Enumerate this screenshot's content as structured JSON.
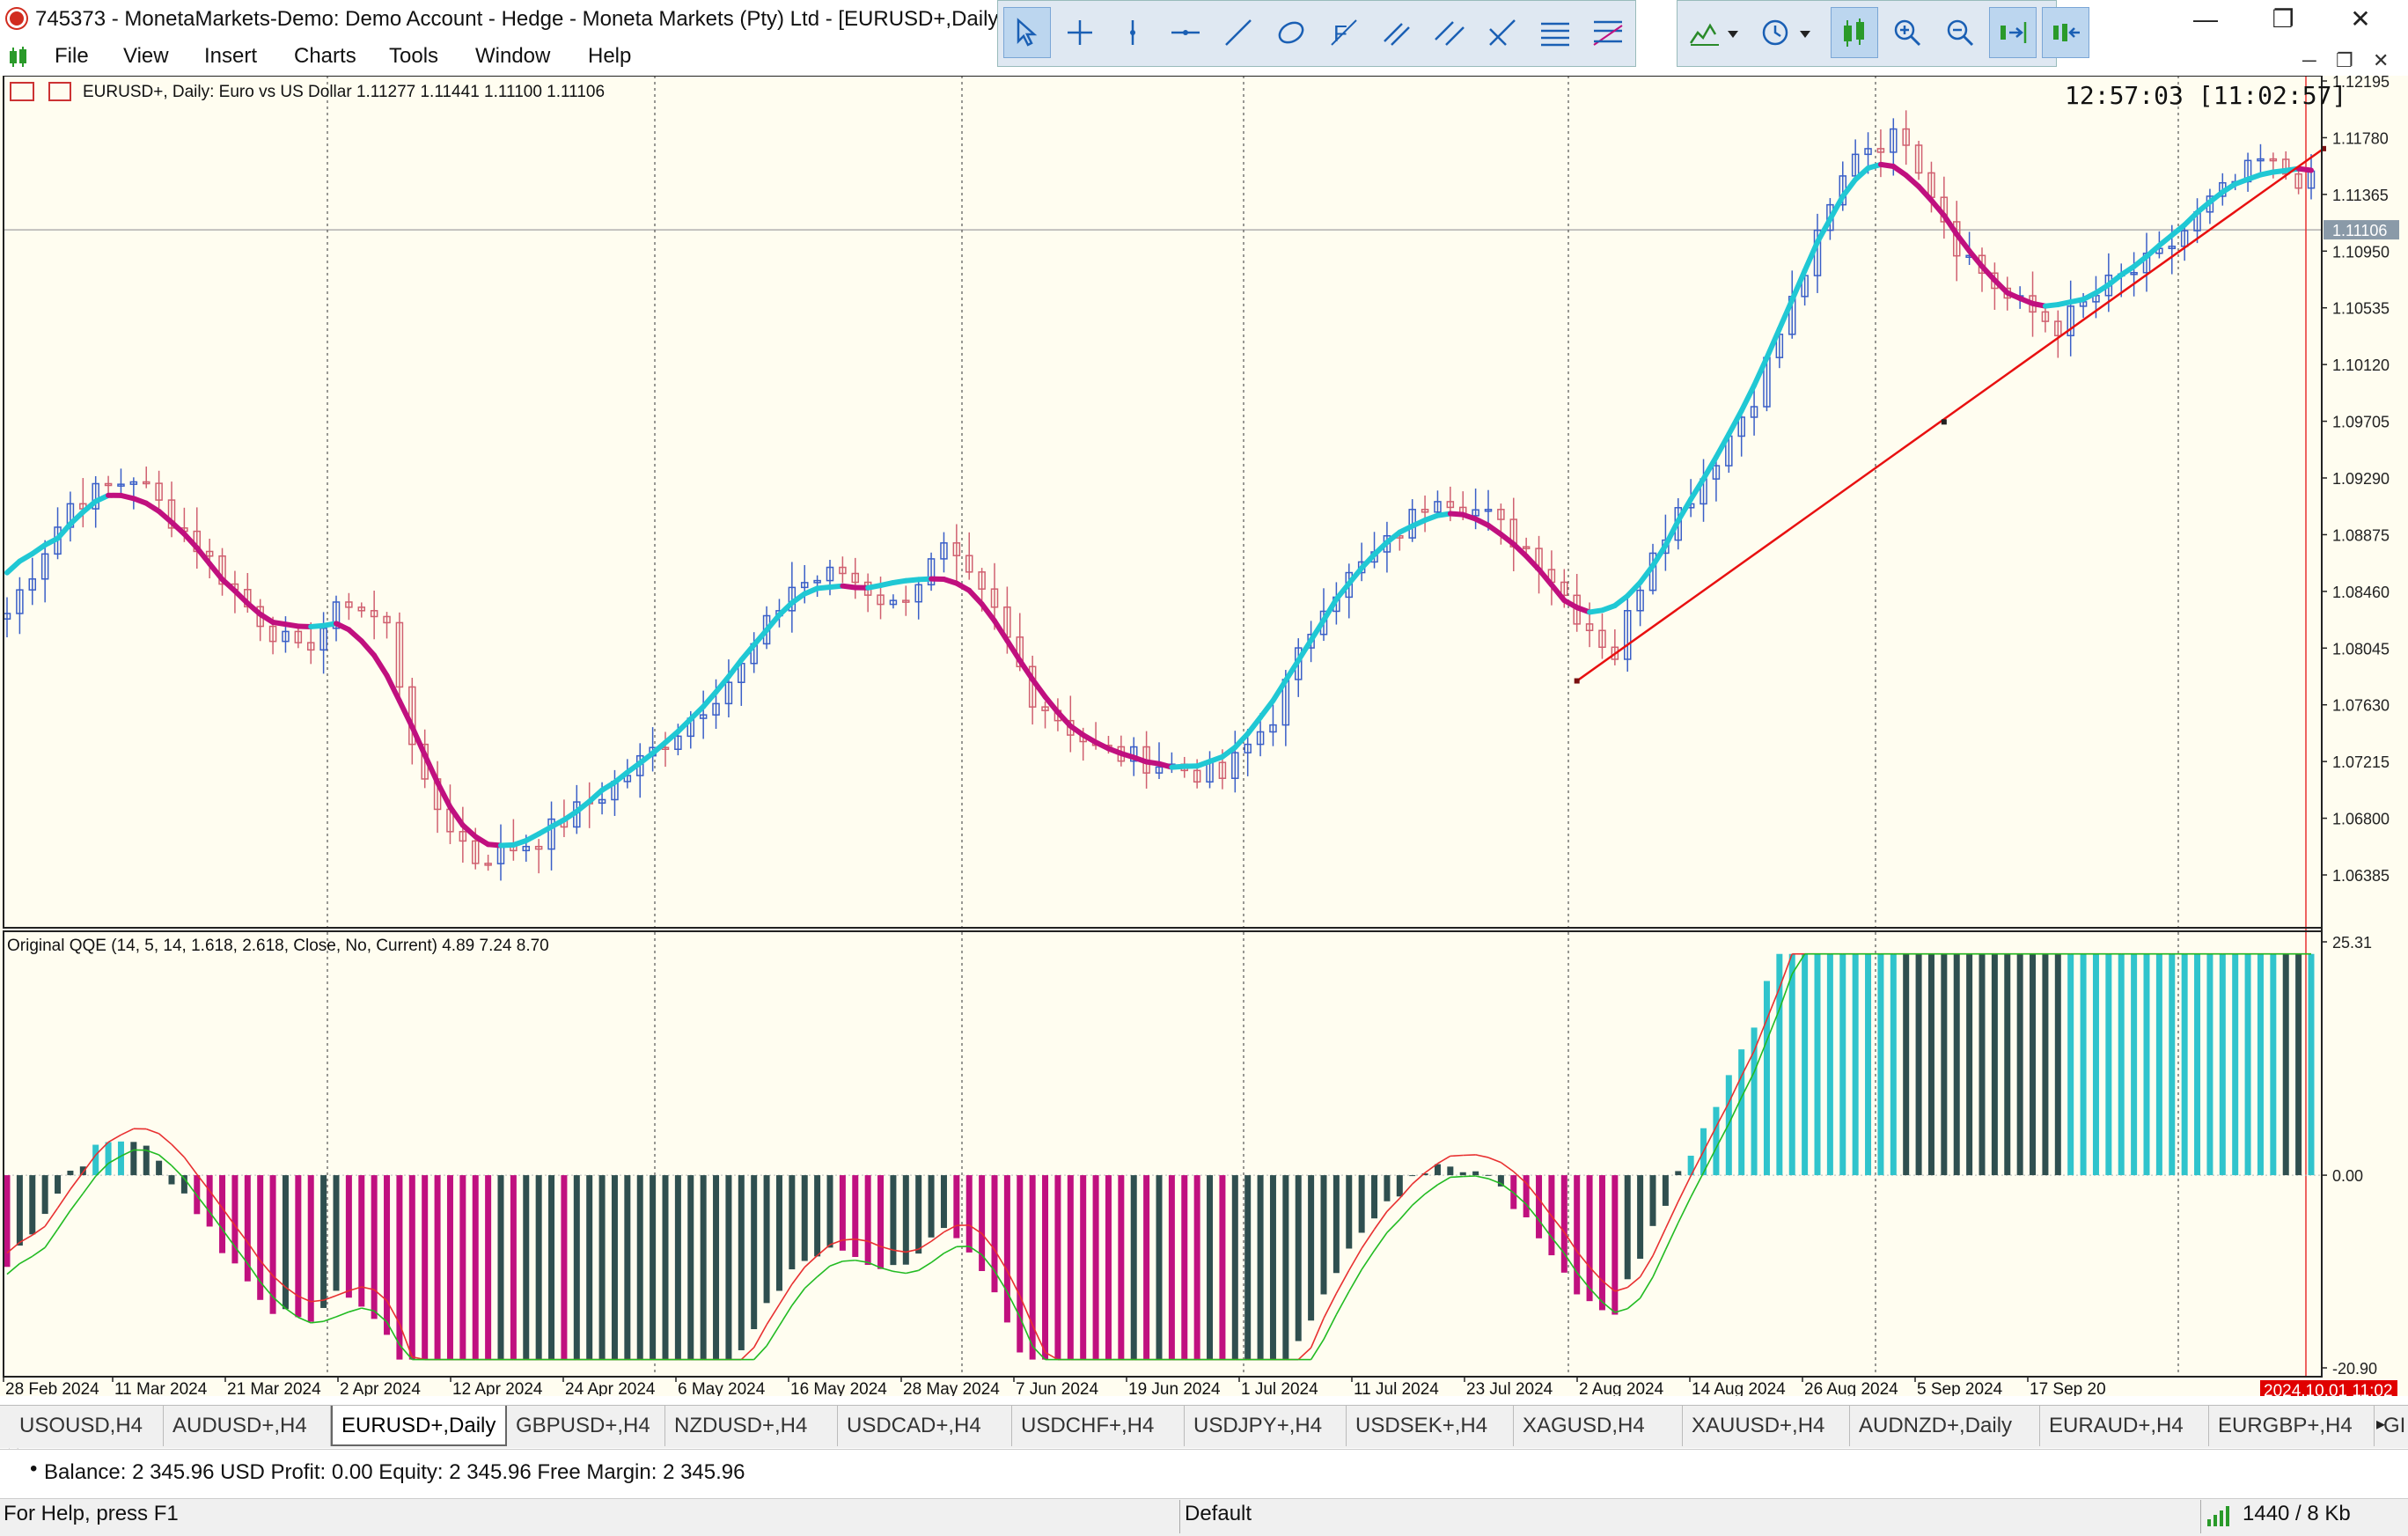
{
  "window": {
    "title": "745373 - MonetaMarkets-Demo: Demo Account - Hedge - Moneta Markets (Pty) Ltd - [EURUSD+,Daily]",
    "min": "—",
    "max": "❐",
    "close": "✕"
  },
  "menu": [
    "File",
    "View",
    "Insert",
    "Charts",
    "Tools",
    "Window",
    "Help"
  ],
  "toolbar_icons": [
    "cursor-icon",
    "crosshair-icon",
    "vertical-line-icon",
    "horizontal-line-icon",
    "trendline-icon",
    "ellipse-icon",
    "fibo-icon",
    "channel-icon",
    "parallel-icon",
    "pitchfork-icon",
    "levels-icon",
    "fan-icon",
    "indicators-icon",
    "timeframe-icon",
    "candles-icon",
    "zoom-in-icon",
    "zoom-out-icon",
    "autoscroll-icon",
    "chart-shift-icon"
  ],
  "chart": {
    "symbol_line": "EURUSD+, Daily:  Euro vs US Dollar  1.11277 1.11441 1.11100 1.11106",
    "clock": "12:57:03 [11:02:57]",
    "price_ticks": [
      "1.12195",
      "1.11780",
      "1.11365",
      "1.10950",
      "1.10535",
      "1.10120",
      "1.09705",
      "1.09290",
      "1.08875",
      "1.08460",
      "1.08045",
      "1.07630",
      "1.07215",
      "1.06800",
      "1.06385"
    ],
    "current_price": "1.11106",
    "indicator_label": "Original QQE (14, 5, 14, 1.618, 2.618, Close, No, Current) 4.89 7.24 8.70",
    "qqe_ticks": [
      "25.31",
      "0.00",
      "-20.90"
    ],
    "date_labels": [
      "28 Feb 2024",
      "11 Mar 2024",
      "21 Mar 2024",
      "2 Apr 2024",
      "12 Apr 2024",
      "24 Apr 2024",
      "6 May 2024",
      "16 May 2024",
      "28 May 2024",
      "7 Jun 2024",
      "19 Jun 2024",
      "1 Jul 2024",
      "11 Jul 2024",
      "23 Jul 2024",
      "2 Aug 2024",
      "14 Aug 2024",
      "26 Aug 2024",
      "5 Sep 2024",
      "17 Sep 20"
    ],
    "current_date_label": "2024.10.01 11:02",
    "colors": {
      "bg": "#fffdf0",
      "bull": "#3a5fc8",
      "bear": "#d06070",
      "ma_up": "#20c8d4",
      "ma_down": "#c0107f",
      "trend": "#e81010",
      "qqe_up": "#30c4cc",
      "qqe_dn": "#c0107f",
      "qqe_neutral": "#2f4f4f",
      "qqe_fast": "#e83030",
      "qqe_slow": "#22bb22"
    }
  },
  "tabs": [
    "USOUSD,H4",
    "AUDUSD+,H4",
    "EURUSD+,Daily",
    "GBPUSD+,H4",
    "NZDUSD+,H4",
    "USDCAD+,H4",
    "USDCHF+,H4",
    "USDJPY+,H4",
    "USDSEK+,H4",
    "XAGUSD,H4",
    "XAUUSD+,H4",
    "AUDNZD+,Daily",
    "EURAUD+,H4",
    "EURGBP+,H4",
    "GI"
  ],
  "active_tab": "EURUSD+,Daily",
  "terminal": {
    "balance_line": "Balance: 2 345.96 USD  Profit: 0.00  Equity: 2 345.96  Free Margin: 2 345.96"
  },
  "status": {
    "help": "For Help, press F1",
    "profile": "Default",
    "traffic": "1440 / 8 Kb"
  }
}
